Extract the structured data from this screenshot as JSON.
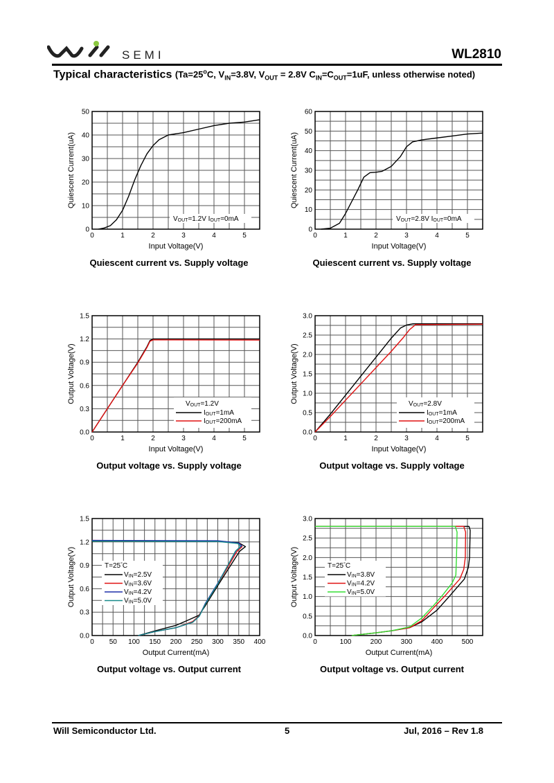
{
  "header": {
    "brand": "SEMI",
    "logo_text": "will",
    "part_number": "WL2810",
    "title_main": "Typical characteristics",
    "title_cond": [
      "(Ta=25",
      "o",
      "C, V",
      "IN",
      "=3.8V, V",
      "OUT",
      " = 2.8V C",
      "IN",
      "=C",
      "OUT",
      "=1uF, unless otherwise noted)"
    ]
  },
  "footer": {
    "company": "Will Semiconductor Ltd.",
    "page": "5",
    "revision": "Jul, 2016 – Rev 1.8"
  },
  "colors": {
    "black": "#000000",
    "red": "#e01010",
    "blue": "#1c2fa8",
    "teal": "#178a8a",
    "green": "#33dd33",
    "grid": "#555555"
  },
  "chart_data": [
    {
      "type": "line",
      "title": "Quiescent current vs. Supply voltage",
      "xlabel": "Input Voltage(V)",
      "ylabel": "Quiescent Current(uA)",
      "xlim": [
        0,
        5.5
      ],
      "ylim": [
        0,
        50
      ],
      "xticks": [
        0,
        1,
        2,
        3,
        4,
        5
      ],
      "yticks": [
        0,
        10,
        20,
        30,
        40,
        50
      ],
      "xgrid": 0.5,
      "ygrid": 5,
      "grid": true,
      "legend_style": "note",
      "legend_placement": "bottom-right",
      "legend_title": null,
      "series": [
        {
          "name": [
            "V",
            "OUT",
            "=1.2V I",
            "OUT",
            "=0mA"
          ],
          "color": "#000000",
          "x": [
            0.2,
            0.4,
            0.6,
            0.8,
            1.0,
            1.2,
            1.4,
            1.6,
            1.8,
            2.0,
            2.2,
            2.5,
            3.0,
            3.5,
            4.0,
            4.5,
            5.0,
            5.5
          ],
          "y": [
            0,
            0.5,
            1.5,
            4,
            8,
            14,
            21,
            27,
            32,
            35.5,
            38,
            40,
            41,
            42.5,
            44,
            45,
            45.5,
            46.5
          ]
        }
      ]
    },
    {
      "type": "line",
      "title": "Quiescent current vs. Supply voltage",
      "xlabel": "Input Voltage(V)",
      "ylabel": "Quiescent Current(uA)",
      "xlim": [
        0,
        5.5
      ],
      "ylim": [
        0,
        60
      ],
      "xticks": [
        0,
        1,
        2,
        3,
        4,
        5
      ],
      "yticks": [
        0,
        10,
        20,
        30,
        40,
        50,
        60
      ],
      "xgrid": 0.5,
      "ygrid": 5,
      "grid": true,
      "legend_style": "note",
      "legend_placement": "bottom-right",
      "legend_title": null,
      "series": [
        {
          "name": [
            "V",
            "OUT",
            "=2.8V I",
            "OUT",
            "=0mA"
          ],
          "color": "#000000",
          "x": [
            0.2,
            0.5,
            0.8,
            1.0,
            1.2,
            1.4,
            1.6,
            1.8,
            2.0,
            2.2,
            2.5,
            2.8,
            3.0,
            3.2,
            3.5,
            4.0,
            4.5,
            5.0,
            5.5
          ],
          "y": [
            0,
            0.5,
            3,
            8,
            14,
            20,
            26.5,
            28.8,
            29,
            29.5,
            32,
            37,
            42,
            44.5,
            45.5,
            46.5,
            47.5,
            48.5,
            49
          ]
        }
      ]
    },
    {
      "type": "line",
      "title": "Output voltage vs. Supply voltage",
      "xlabel": "Input Voltage(V)",
      "ylabel": "Output Voltage(V)",
      "xlim": [
        0,
        5.5
      ],
      "ylim": [
        0,
        1.5
      ],
      "xticks": [
        0,
        1,
        2,
        3,
        4,
        5
      ],
      "yticks": [
        0.0,
        0.3,
        0.6,
        0.9,
        1.2,
        1.5
      ],
      "ydec": 1,
      "xgrid": 0.5,
      "ygrid": 0.15,
      "grid": true,
      "legend_style": "lines",
      "legend_placement": "bottom-right",
      "legend_title": [
        "V",
        "OUT",
        "=1.2V"
      ],
      "series": [
        {
          "name": [
            "I",
            "OUT",
            "=1mA"
          ],
          "color": "#000000",
          "x": [
            0,
            0.5,
            1,
            1.5,
            1.8,
            1.9,
            2.0,
            2.5,
            5.5
          ],
          "y": [
            0,
            0.3,
            0.6,
            0.9,
            1.1,
            1.18,
            1.2,
            1.2,
            1.2
          ]
        },
        {
          "name": [
            "I",
            "OUT",
            "=200mA"
          ],
          "color": "#e01010",
          "x": [
            0,
            0.5,
            1,
            1.5,
            1.8,
            1.9,
            2.0,
            2.5,
            5.5
          ],
          "y": [
            0,
            0.3,
            0.6,
            0.89,
            1.09,
            1.17,
            1.188,
            1.188,
            1.186
          ]
        }
      ]
    },
    {
      "type": "line",
      "title": "Output voltage vs. Supply voltage",
      "xlabel": "Input Voltage(V)",
      "ylabel": "Output Voltage(V)",
      "xlim": [
        0,
        5.5
      ],
      "ylim": [
        0,
        3.0
      ],
      "xticks": [
        0,
        1,
        2,
        3,
        4,
        5
      ],
      "yticks": [
        0.0,
        0.5,
        1.0,
        1.5,
        2.0,
        2.5,
        3.0
      ],
      "ydec": 1,
      "xgrid": 0.5,
      "ygrid": 0.25,
      "grid": true,
      "legend_style": "lines",
      "legend_placement": "bottom-right",
      "legend_title": [
        "V",
        "OUT",
        "=2.8V"
      ],
      "series": [
        {
          "name": [
            "I",
            "OUT",
            "=1mA"
          ],
          "color": "#000000",
          "x": [
            0,
            0.5,
            1,
            1.5,
            2,
            2.5,
            2.8,
            3.0,
            3.2,
            5.5
          ],
          "y": [
            0,
            0.46,
            0.95,
            1.44,
            1.93,
            2.42,
            2.68,
            2.76,
            2.79,
            2.79
          ]
        },
        {
          "name": [
            "I",
            "OUT",
            "=200mA"
          ],
          "color": "#e01010",
          "x": [
            0,
            0.5,
            1,
            1.5,
            2,
            2.5,
            2.9,
            3.1,
            3.3,
            5.5
          ],
          "y": [
            0,
            0.4,
            0.82,
            1.24,
            1.66,
            2.08,
            2.44,
            2.64,
            2.77,
            2.78
          ]
        }
      ]
    },
    {
      "type": "line",
      "title": "Output voltage vs. Output current",
      "xlabel": "Output Current(mA)",
      "ylabel": "Output Voltage(V)",
      "xlim": [
        0,
        400
      ],
      "ylim": [
        0,
        1.5
      ],
      "xticks": [
        0,
        50,
        100,
        150,
        200,
        250,
        300,
        350,
        400
      ],
      "yticks": [
        0.0,
        0.3,
        0.6,
        0.9,
        1.2,
        1.5
      ],
      "ydec": 1,
      "xgrid": 25,
      "ygrid": 0.15,
      "grid": true,
      "legend_style": "lines-left",
      "legend_placement": "center-left",
      "legend_title": [
        "T=25",
        "°",
        "C"
      ],
      "series": [
        {
          "name": [
            "V",
            "IN",
            "=2.5V"
          ],
          "color": "#000000",
          "x": [
            0,
            300,
            350,
            366,
            352,
            300,
            270,
            255,
            230,
            200,
            150,
            110
          ],
          "y": [
            1.21,
            1.21,
            1.19,
            1.14,
            1.08,
            0.64,
            0.38,
            0.26,
            0.2,
            0.13,
            0.06,
            0
          ]
        },
        {
          "name": [
            "V",
            "IN",
            "=3.6V"
          ],
          "color": "#e01010",
          "x": [
            0,
            300,
            352,
            358,
            346,
            300,
            270,
            255,
            240,
            200,
            150,
            110
          ],
          "y": [
            1.22,
            1.21,
            1.18,
            1.14,
            1.08,
            0.66,
            0.4,
            0.25,
            0.18,
            0.1,
            0.05,
            0
          ]
        },
        {
          "name": [
            "V",
            "IN",
            "=4.2V"
          ],
          "color": "#1c2fa8",
          "x": [
            0,
            300,
            350,
            357,
            344,
            300,
            270,
            256,
            240,
            200,
            150,
            110
          ],
          "y": [
            1.22,
            1.215,
            1.185,
            1.15,
            1.09,
            0.67,
            0.41,
            0.25,
            0.17,
            0.1,
            0.05,
            0
          ]
        },
        {
          "name": [
            "V",
            "IN",
            "=5.0V"
          ],
          "color": "#178a8a",
          "x": [
            0,
            300,
            348,
            354,
            342,
            300,
            270,
            256,
            240,
            200,
            150,
            110
          ],
          "y": [
            1.21,
            1.205,
            1.18,
            1.14,
            1.08,
            0.66,
            0.4,
            0.25,
            0.17,
            0.1,
            0.05,
            0
          ]
        }
      ]
    },
    {
      "type": "line",
      "title": "Output voltage vs. Output current",
      "xlabel": "Output Current(mA)",
      "ylabel": "Output Voltage(V)",
      "xlim": [
        0,
        550
      ],
      "ylim": [
        0,
        3.0
      ],
      "xticks": [
        0,
        100,
        200,
        300,
        400,
        500
      ],
      "yticks": [
        0.0,
        0.5,
        1.0,
        1.5,
        2.0,
        2.5,
        3.0
      ],
      "ydec": 1,
      "xgrid": 50,
      "ygrid": 0.25,
      "grid": true,
      "legend_style": "lines-left",
      "legend_placement": "center-left",
      "legend_title": [
        "T=25",
        "°",
        "C"
      ],
      "series": [
        {
          "name": [
            "V",
            "IN",
            "=3.8V"
          ],
          "color": "#000000",
          "x": [
            0,
            505,
            509,
            507,
            503,
            490,
            440,
            400,
            350,
            310,
            250,
            200,
            120
          ],
          "y": [
            2.8,
            2.8,
            2.7,
            2.0,
            1.75,
            1.45,
            1.0,
            0.65,
            0.35,
            0.2,
            0.12,
            0.07,
            0
          ]
        },
        {
          "name": [
            "V",
            "IN",
            "=4.2V"
          ],
          "color": "#e01010",
          "x": [
            0,
            488,
            494,
            493,
            488,
            475,
            430,
            390,
            350,
            310,
            250,
            200,
            120
          ],
          "y": [
            2.8,
            2.8,
            2.65,
            2.0,
            1.7,
            1.45,
            1.05,
            0.72,
            0.38,
            0.2,
            0.12,
            0.07,
            0
          ]
        },
        {
          "name": [
            "V",
            "IN",
            "=5.0V"
          ],
          "color": "#33dd33",
          "x": [
            0,
            460,
            466,
            464,
            462,
            450,
            420,
            390,
            350,
            310,
            250,
            200,
            120
          ],
          "y": [
            2.8,
            2.8,
            2.65,
            2.0,
            1.55,
            1.35,
            1.05,
            0.78,
            0.45,
            0.22,
            0.12,
            0.07,
            0
          ]
        }
      ]
    }
  ]
}
